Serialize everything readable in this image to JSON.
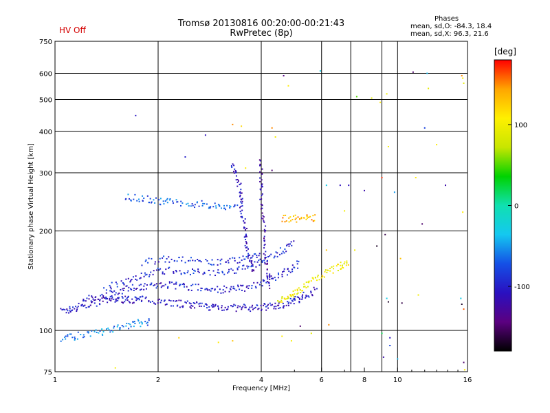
{
  "header": {
    "title": "Tromsø 20130816 00:20:00-00:21:43",
    "subtitle": "RwPretec (8p)",
    "hv_status": "HV Off",
    "stats_heading": "Phases",
    "stats_o": "mean, sd,O: -84.3, 18.4",
    "stats_x": "mean, sd,X:  96.3, 21.6"
  },
  "colors": {
    "hv_status": "#d40000",
    "grid": "#000000",
    "colormap": [
      "#000000",
      "#5b0080",
      "#2a10c0",
      "#1450e6",
      "#14c8f0",
      "#10e0b0",
      "#00d200",
      "#c8e600",
      "#fff000",
      "#ffa500",
      "#ff0000"
    ]
  },
  "chart_data": {
    "type": "scatter",
    "title": "Tromsø 20130816 00:20:00-00:21:43",
    "subtitle": "RwPretec (8p)",
    "xlabel": "Frequency [MHz]",
    "ylabel": "Stationary phase Virtual Height [km]",
    "x_scale": "log",
    "y_scale": "log",
    "xlim": [
      1,
      16
    ],
    "ylim": [
      75,
      750
    ],
    "x_ticks": [
      1,
      2,
      4,
      6,
      8,
      10,
      16
    ],
    "x_tick_labels": [
      "1",
      "2",
      "4",
      "6",
      "8",
      "10",
      "16"
    ],
    "x_gridlines": [
      2,
      4,
      6,
      7.3,
      9,
      10
    ],
    "y_ticks": [
      75,
      100,
      200,
      300,
      400,
      500,
      600,
      750
    ],
    "y_tick_labels": [
      "75",
      "100",
      "200",
      "300",
      "400",
      "500",
      "600",
      "750"
    ],
    "grid": true,
    "colorbar": {
      "label": "[deg]",
      "range": [
        -180,
        180
      ],
      "ticks": [
        100,
        0,
        -100
      ],
      "tick_labels": [
        "100",
        "0",
        "-100"
      ]
    },
    "traces": [
      {
        "points": [
          [
            1.05,
            114
          ],
          [
            1.12,
            116
          ],
          [
            1.2,
            119
          ],
          [
            1.3,
            121
          ],
          [
            1.4,
            123
          ],
          [
            1.5,
            124
          ],
          [
            1.6,
            124
          ],
          [
            1.7,
            124
          ],
          [
            1.8,
            124
          ],
          [
            2.0,
            123
          ],
          [
            2.2,
            121
          ],
          [
            2.4,
            120
          ],
          [
            2.6,
            119
          ],
          [
            2.8,
            118
          ],
          [
            3.0,
            118
          ],
          [
            3.3,
            117
          ],
          [
            3.6,
            117
          ],
          [
            3.9,
            117
          ],
          [
            4.2,
            118
          ],
          [
            4.5,
            119
          ],
          [
            4.8,
            121
          ],
          [
            5.1,
            124
          ],
          [
            5.4,
            128
          ],
          [
            5.8,
            133
          ]
        ],
        "phase": -105
      },
      {
        "points": [
          [
            1.2,
            123
          ],
          [
            1.35,
            127
          ],
          [
            1.5,
            131
          ],
          [
            1.65,
            134
          ],
          [
            1.8,
            136
          ],
          [
            2.0,
            137
          ],
          [
            2.2,
            137
          ],
          [
            2.4,
            136
          ],
          [
            2.7,
            134
          ],
          [
            3.0,
            133
          ],
          [
            3.3,
            133
          ],
          [
            3.6,
            135
          ],
          [
            4.0,
            139
          ],
          [
            4.4,
            145
          ],
          [
            4.8,
            152
          ],
          [
            5.2,
            160
          ]
        ],
        "phase": -100
      },
      {
        "points": [
          [
            1.4,
            133
          ],
          [
            1.6,
            141
          ],
          [
            1.8,
            147
          ],
          [
            2.0,
            151
          ],
          [
            2.3,
            152
          ],
          [
            2.6,
            150
          ],
          [
            3.0,
            149
          ],
          [
            3.4,
            152
          ],
          [
            3.8,
            158
          ],
          [
            4.2,
            166
          ],
          [
            4.6,
            175
          ],
          [
            5.0,
            185
          ]
        ],
        "phase": -95
      },
      {
        "points": [
          [
            1.8,
            160
          ],
          [
            2.1,
            165
          ],
          [
            2.4,
            163
          ],
          [
            2.8,
            160
          ],
          [
            3.2,
            161
          ],
          [
            3.6,
            166
          ],
          [
            4.0,
            172
          ]
        ],
        "phase": -90
      },
      {
        "points": [
          [
            1.6,
            255
          ],
          [
            1.8,
            250
          ],
          [
            2.0,
            247
          ],
          [
            2.2,
            244
          ],
          [
            2.5,
            242
          ],
          [
            2.8,
            240
          ],
          [
            3.1,
            238
          ],
          [
            3.4,
            237
          ]
        ],
        "phase": -70
      },
      {
        "points": [
          [
            1.05,
            95
          ],
          [
            1.15,
            96
          ],
          [
            1.3,
            98
          ],
          [
            1.45,
            100
          ],
          [
            1.6,
            103
          ],
          [
            1.75,
            105
          ],
          [
            1.9,
            107
          ]
        ],
        "phase": -60
      },
      {
        "points": [
          [
            4.5,
            122
          ],
          [
            4.8,
            126
          ],
          [
            5.1,
            131
          ],
          [
            5.4,
            137
          ],
          [
            5.8,
            144
          ],
          [
            6.3,
            151
          ],
          [
            6.8,
            157
          ],
          [
            7.2,
            160
          ]
        ],
        "phase": 100
      },
      {
        "points": [
          [
            4.6,
            218
          ],
          [
            5.0,
            218
          ],
          [
            5.4,
            219
          ],
          [
            5.8,
            220
          ]
        ],
        "phase": 135
      },
      {
        "points": [
          [
            3.3,
            320
          ],
          [
            3.4,
            290
          ],
          [
            3.5,
            260
          ],
          [
            3.5,
            230
          ],
          [
            3.6,
            205
          ],
          [
            3.6,
            185
          ],
          [
            3.7,
            165
          ],
          [
            3.8,
            150
          ]
        ],
        "phase": -110
      },
      {
        "points": [
          [
            4.0,
            330
          ],
          [
            4.0,
            280
          ],
          [
            4.0,
            240
          ],
          [
            4.1,
            200
          ],
          [
            4.1,
            170
          ],
          [
            4.2,
            150
          ],
          [
            4.2,
            135
          ]
        ],
        "phase": -120
      }
    ],
    "points": [
      [
        1.72,
        447,
        -105
      ],
      [
        2.75,
        390,
        -110
      ],
      [
        3.3,
        420,
        150
      ],
      [
        3.5,
        415,
        120
      ],
      [
        4.3,
        410,
        150
      ],
      [
        4.4,
        385,
        100
      ],
      [
        4.65,
        590,
        -140
      ],
      [
        4.8,
        550,
        110
      ],
      [
        5.95,
        610,
        -30
      ],
      [
        7.6,
        510,
        50
      ],
      [
        8.4,
        505,
        90
      ],
      [
        8.9,
        490,
        110
      ],
      [
        9.3,
        520,
        100
      ],
      [
        9.4,
        360,
        100
      ],
      [
        11.1,
        605,
        -150
      ],
      [
        12.2,
        600,
        -40
      ],
      [
        12.3,
        540,
        90
      ],
      [
        15.4,
        590,
        150
      ],
      [
        15.5,
        580,
        110
      ],
      [
        15.6,
        560,
        90
      ],
      [
        12.0,
        410,
        -80
      ],
      [
        13.0,
        365,
        110
      ],
      [
        6.2,
        275,
        -30
      ],
      [
        6.8,
        275,
        -110
      ],
      [
        7.2,
        275,
        -110
      ],
      [
        8.0,
        265,
        -120
      ],
      [
        9.0,
        290,
        170
      ],
      [
        9.8,
        262,
        -50
      ],
      [
        11.3,
        290,
        110
      ],
      [
        13.8,
        275,
        -120
      ],
      [
        15.5,
        228,
        110
      ],
      [
        11.8,
        210,
        -150
      ],
      [
        9.2,
        195,
        -160
      ],
      [
        8.7,
        180,
        -170
      ],
      [
        7.5,
        175,
        100
      ],
      [
        10.2,
        165,
        130
      ],
      [
        6.2,
        175,
        130
      ],
      [
        9.3,
        125,
        -30
      ],
      [
        9.4,
        122,
        -170
      ],
      [
        10.3,
        121,
        -160
      ],
      [
        11.5,
        128,
        100
      ],
      [
        15.3,
        125,
        -30
      ],
      [
        15.4,
        120,
        -170
      ],
      [
        15.6,
        116,
        160
      ],
      [
        15.6,
        80,
        -150
      ],
      [
        15.7,
        76,
        110
      ],
      [
        9.0,
        98,
        20
      ],
      [
        9.5,
        95,
        -110
      ],
      [
        9.5,
        90,
        -80
      ],
      [
        9.1,
        83,
        -120
      ],
      [
        10.0,
        82,
        -40
      ],
      [
        6.3,
        104,
        150
      ],
      [
        5.2,
        103,
        -150
      ],
      [
        4.6,
        96,
        110
      ],
      [
        4.9,
        93,
        100
      ],
      [
        3.0,
        92,
        110
      ],
      [
        3.3,
        93,
        130
      ],
      [
        1.5,
        77,
        100
      ],
      [
        2.3,
        95,
        120
      ],
      [
        5.6,
        98,
        90
      ],
      [
        7.0,
        230,
        100
      ],
      [
        4.3,
        305,
        -150
      ],
      [
        3.6,
        310,
        110
      ],
      [
        2.4,
        335,
        -100
      ]
    ]
  }
}
